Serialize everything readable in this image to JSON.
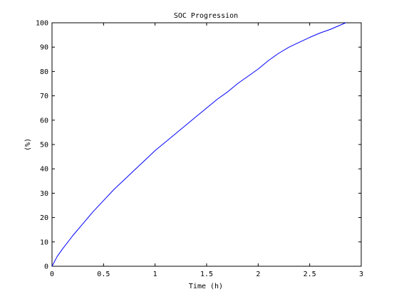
{
  "chart_data": {
    "type": "line",
    "title": "SOC Progression",
    "xlabel": "Time (h)",
    "ylabel": "(%)",
    "xlim": [
      0,
      3
    ],
    "ylim": [
      0,
      100
    ],
    "xticks": [
      0,
      0.5,
      1,
      1.5,
      2,
      2.5,
      3
    ],
    "xtick_labels": [
      "0",
      "0.5",
      "1",
      "1.5",
      "2",
      "2.5",
      "3"
    ],
    "yticks": [
      0,
      10,
      20,
      30,
      40,
      50,
      60,
      70,
      80,
      90,
      100
    ],
    "ytick_labels": [
      "0",
      "10",
      "20",
      "30",
      "40",
      "50",
      "60",
      "70",
      "80",
      "90",
      "100"
    ],
    "grid": false,
    "series": [
      {
        "color": "#0000ff",
        "x": [
          0,
          0.05,
          0.1,
          0.2,
          0.3,
          0.4,
          0.5,
          0.6,
          0.7,
          0.8,
          0.9,
          1.0,
          1.1,
          1.2,
          1.3,
          1.4,
          1.5,
          1.6,
          1.7,
          1.8,
          1.9,
          2.0,
          2.1,
          2.2,
          2.3,
          2.4,
          2.5,
          2.6,
          2.7,
          2.85
        ],
        "y": [
          0,
          4,
          7,
          12.5,
          17.5,
          22.5,
          27,
          31.5,
          35.5,
          39.5,
          43.5,
          47.5,
          51,
          54.5,
          58,
          61.5,
          65,
          68.5,
          71.5,
          75,
          78,
          81,
          84.5,
          87.5,
          90,
          92,
          94,
          95.8,
          97.3,
          100
        ]
      }
    ]
  }
}
